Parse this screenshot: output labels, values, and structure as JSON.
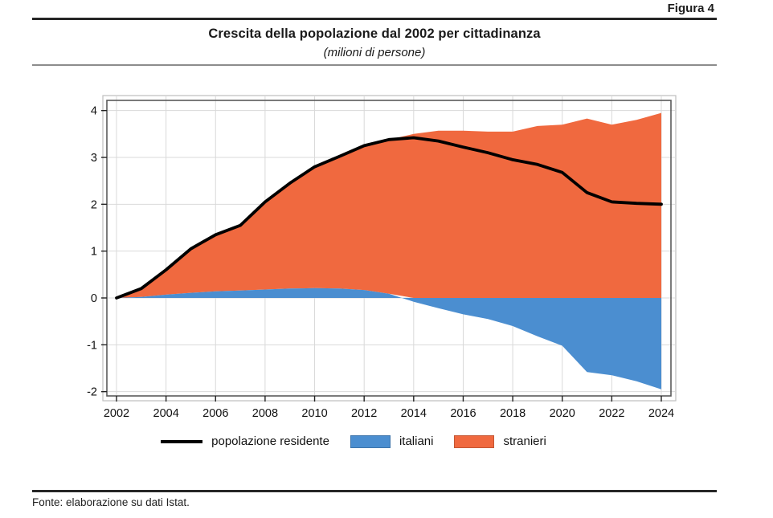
{
  "header": {
    "figure_label": "Figura 4",
    "title": "Crescita della popolazione dal 2002 per cittadinanza",
    "subtitle": "(milioni di persone)"
  },
  "footer": {
    "source": "Fonte: elaborazione su dati Istat."
  },
  "chart_data": {
    "type": "area",
    "title": "Crescita della popolazione dal 2002 per cittadinanza",
    "subtitle": "(milioni di persone)",
    "xlabel": "",
    "ylabel": "",
    "x": [
      2002,
      2003,
      2004,
      2005,
      2006,
      2007,
      2008,
      2009,
      2010,
      2011,
      2012,
      2013,
      2014,
      2015,
      2016,
      2017,
      2018,
      2019,
      2020,
      2021,
      2022,
      2023,
      2024
    ],
    "series": [
      {
        "name": "popolazione residente",
        "render": "line",
        "color": "#000000",
        "values": [
          0.0,
          0.2,
          0.6,
          1.05,
          1.35,
          1.55,
          2.05,
          2.45,
          2.8,
          3.02,
          3.25,
          3.38,
          3.42,
          3.35,
          3.22,
          3.1,
          2.95,
          2.85,
          2.68,
          2.25,
          2.05,
          2.02,
          2.0
        ]
      },
      {
        "name": "italiani",
        "render": "area",
        "color": "#4B8ED0",
        "values": [
          0.0,
          0.02,
          0.07,
          0.11,
          0.14,
          0.16,
          0.18,
          0.2,
          0.21,
          0.2,
          0.17,
          0.09,
          -0.08,
          -0.22,
          -0.35,
          -0.45,
          -0.6,
          -0.82,
          -1.02,
          -1.58,
          -1.65,
          -1.78,
          -1.95
        ]
      },
      {
        "name": "stranieri",
        "render": "area-stacked",
        "color": "#F0693F",
        "values": [
          0.0,
          0.18,
          0.53,
          0.94,
          1.21,
          1.39,
          1.87,
          2.25,
          2.59,
          2.82,
          3.08,
          3.29,
          3.5,
          3.57,
          3.57,
          3.55,
          3.55,
          3.67,
          3.7,
          3.83,
          3.7,
          3.8,
          3.95
        ]
      }
    ],
    "y_ticks": [
      -2,
      -1,
      0,
      1,
      2,
      3,
      4
    ],
    "x_ticks": [
      2002,
      2004,
      2006,
      2008,
      2010,
      2012,
      2014,
      2016,
      2018,
      2020,
      2022,
      2024
    ],
    "ylim": [
      -2.1,
      4.2
    ],
    "xlim": [
      2001.6,
      2024.4
    ],
    "grid": true,
    "legend": {
      "position": "bottom",
      "items": [
        {
          "label": "popolazione residente",
          "swatch": "line"
        },
        {
          "label": "italiani",
          "swatch": "box"
        },
        {
          "label": "stranieri",
          "swatch": "box"
        }
      ]
    },
    "style": {
      "grid_color": "#d9d9d9",
      "frame_color": "#5a5a5a",
      "frame_outer_color": "#bfbfbf",
      "tick_color": "#222222",
      "tick_label_color": "#111111"
    }
  }
}
